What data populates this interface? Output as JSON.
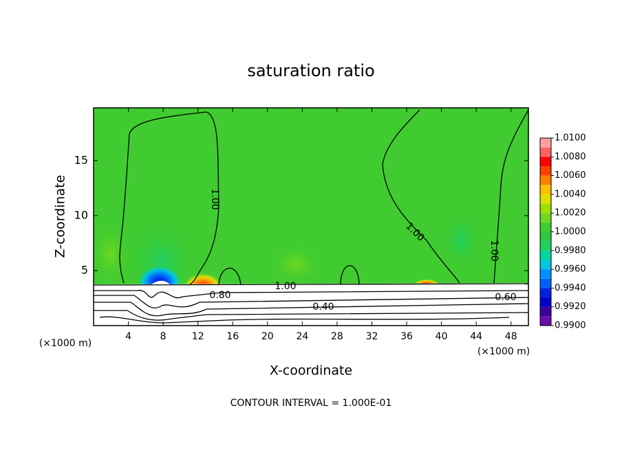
{
  "chart_data": {
    "type": "contour",
    "title": "saturation ratio",
    "x_label": "X-coordinate",
    "y_label": "Z-coordinate",
    "x_unit": "(×1000 m)",
    "y_unit": "(×1000 m)",
    "xlim": [
      0,
      50
    ],
    "xticks": [
      4,
      8,
      12,
      16,
      20,
      24,
      28,
      32,
      36,
      40,
      44,
      48
    ],
    "ylim": [
      0,
      19.8
    ],
    "yticks": [
      5,
      10,
      15
    ],
    "contour_labels": [
      "1.00",
      "1.00",
      "1.00",
      "1.00",
      "0.80",
      "0.60",
      "0.40"
    ],
    "footer": "CONTOUR INTERVAL = 1.000E-01",
    "colorbar": {
      "lim": [
        0.99,
        1.01
      ],
      "step": 0.001,
      "colors": [
        "#6a0dad",
        "#3a00a0",
        "#0000c8",
        "#0020e0",
        "#0060ff",
        "#0090ff",
        "#00c8e0",
        "#00d8a0",
        "#20d060",
        "#30c840",
        "#40cc30",
        "#70d820",
        "#a0e000",
        "#e0e000",
        "#ffc000",
        "#ff8000",
        "#ff4000",
        "#ff0000",
        "#ff6060",
        "#ffa0a0"
      ],
      "ticks": [
        {
          "value": 0.99,
          "label": "0.9900"
        },
        {
          "value": 0.992,
          "label": "0.9920"
        },
        {
          "value": 0.994,
          "label": "0.9940"
        },
        {
          "value": 0.996,
          "label": "0.9960"
        },
        {
          "value": 0.998,
          "label": "0.9980"
        },
        {
          "value": 1.0,
          "label": "1.0000"
        },
        {
          "value": 1.002,
          "label": "1.0020"
        },
        {
          "value": 1.004,
          "label": "1.0040"
        },
        {
          "value": 1.006,
          "label": "1.0060"
        },
        {
          "value": 1.008,
          "label": "1.0080"
        },
        {
          "value": 1.01,
          "label": "1.0100"
        }
      ]
    }
  }
}
